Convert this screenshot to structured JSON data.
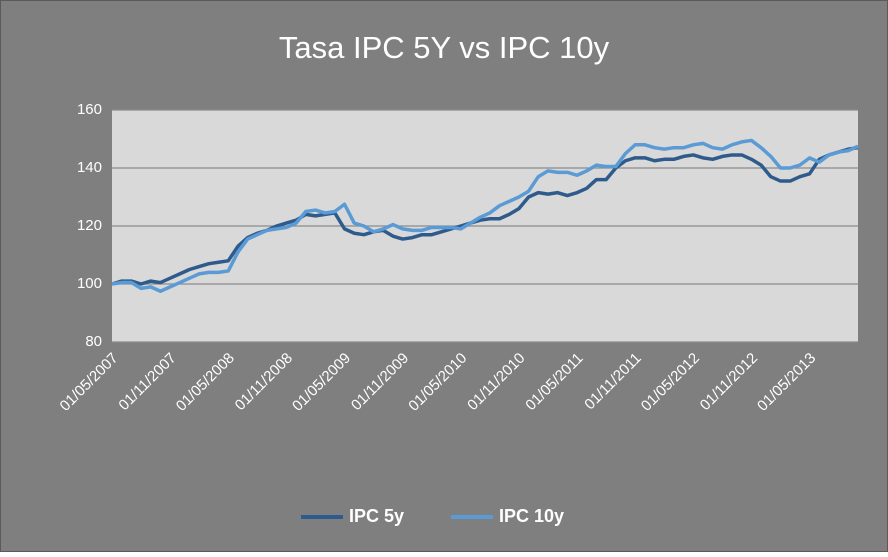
{
  "chart_data": {
    "type": "line",
    "title": "Tasa IPC 5Y vs IPC 10y",
    "categories": [
      "01/05/2007",
      null,
      null,
      null,
      null,
      null,
      "01/11/2007",
      null,
      null,
      null,
      null,
      null,
      "01/05/2008",
      null,
      null,
      null,
      null,
      null,
      "01/11/2008",
      null,
      null,
      null,
      null,
      null,
      "01/05/2009",
      null,
      null,
      null,
      null,
      null,
      "01/11/2009",
      null,
      null,
      null,
      null,
      null,
      "01/05/2010",
      null,
      null,
      null,
      null,
      null,
      "01/11/2010",
      null,
      null,
      null,
      null,
      null,
      "01/05/2011",
      null,
      null,
      null,
      null,
      null,
      "01/11/2011",
      null,
      null,
      null,
      null,
      null,
      "01/05/2012",
      null,
      null,
      null,
      null,
      null,
      "01/11/2012",
      null,
      null,
      null,
      null,
      null,
      "01/05/2013",
      null,
      null,
      null,
      null,
      null
    ],
    "series": [
      {
        "name": "IPC 5y",
        "color": "#2f5b8c",
        "values": [
          100,
          101,
          101,
          100,
          101,
          100.5,
          102,
          103.5,
          105,
          106,
          107,
          107.5,
          108,
          113,
          116,
          117.5,
          118.5,
          120,
          121,
          122,
          124,
          123.5,
          124,
          124.5,
          119,
          117.5,
          117,
          118,
          118.5,
          116.5,
          115.5,
          116,
          117,
          117,
          118,
          119,
          120,
          121,
          122,
          122.5,
          122.5,
          124,
          126,
          130,
          131.5,
          131,
          131.5,
          130.5,
          131.5,
          133,
          136,
          136,
          140,
          142.5,
          143.5,
          143.5,
          142.5,
          143,
          143,
          144,
          144.5,
          143.5,
          143,
          144,
          144.5,
          144.5,
          143,
          141,
          137,
          135.5,
          135.5,
          137,
          138,
          143,
          144.5,
          145.5,
          146.5,
          147
        ]
      },
      {
        "name": "IPC 10y",
        "color": "#5b9bd5",
        "values": [
          100,
          100.5,
          100.5,
          98.5,
          99,
          97.5,
          99,
          100.5,
          102,
          103.5,
          104,
          104,
          104.5,
          111,
          115.5,
          117,
          118.5,
          119,
          119.5,
          121,
          125,
          125.5,
          124.5,
          125,
          127.5,
          121,
          120,
          118,
          119,
          120.5,
          119,
          118.5,
          118.5,
          119.5,
          119.5,
          119.5,
          119,
          121,
          123,
          124.5,
          127,
          128.5,
          130,
          132,
          137,
          139,
          138.5,
          138.5,
          137.5,
          139,
          141,
          140.5,
          140.5,
          145,
          148,
          148,
          147,
          146.5,
          147,
          147,
          148,
          148.5,
          147,
          146.5,
          148,
          149,
          149.5,
          147,
          144,
          140,
          140,
          141,
          143.5,
          142,
          144.5,
          145.5,
          146,
          147.5
        ]
      }
    ],
    "ylim": [
      80,
      160
    ],
    "yticks": [
      80,
      100,
      120,
      140,
      160
    ],
    "grid": true,
    "legend": "bottom"
  }
}
